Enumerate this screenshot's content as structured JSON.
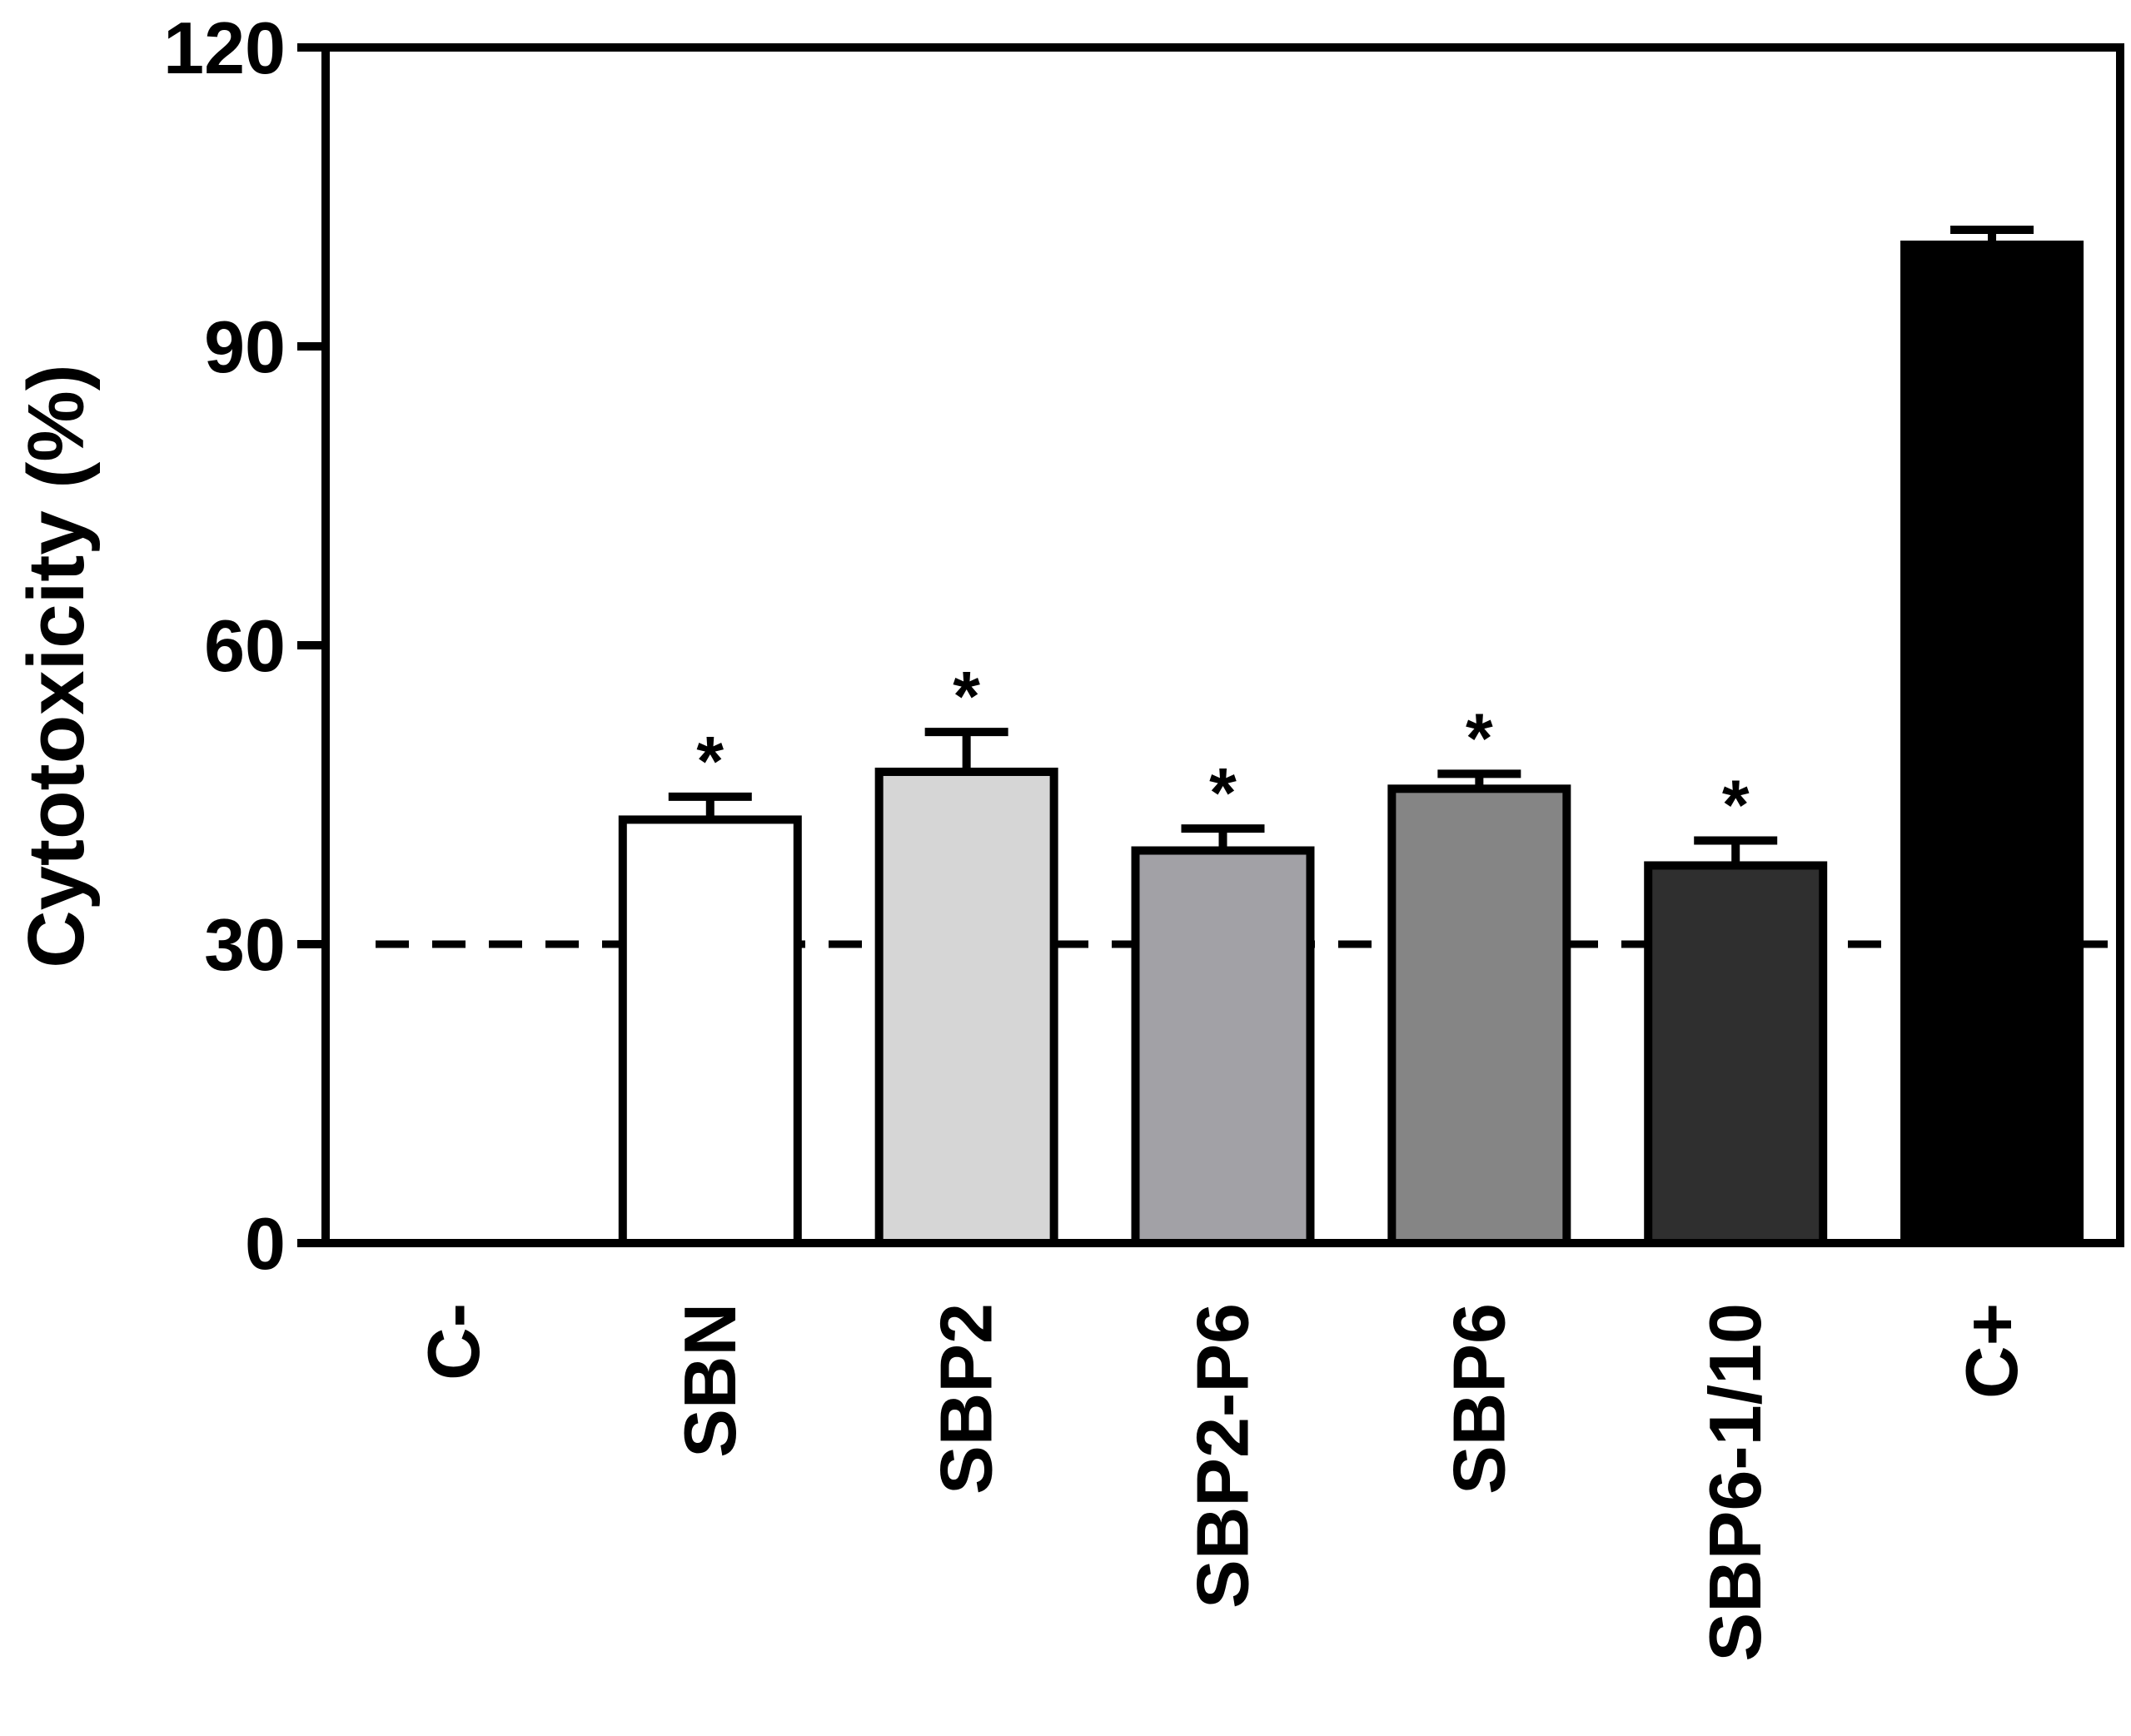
{
  "chart_data": {
    "type": "bar",
    "title": "",
    "xlabel": "",
    "ylabel": "Cytotoxicity (%)",
    "ylim": [
      0,
      120
    ],
    "yticks": [
      "0",
      "30",
      "60",
      "90",
      "120"
    ],
    "grid": false,
    "legend": "none",
    "categories": [
      "C-",
      "SBN",
      "SBP2",
      "SBP2-P6",
      "SBP6",
      "SBP6-1/10",
      "C+"
    ],
    "values": [
      0,
      42.5,
      47.3,
      39.4,
      45.6,
      37.9,
      100.2
    ],
    "errors": [
      0,
      2.3,
      4.0,
      2.2,
      1.5,
      2.5,
      1.5
    ],
    "significance": [
      "",
      "*",
      "*",
      "*",
      "*",
      "*",
      ""
    ],
    "reference_line": {
      "y": 30,
      "style": "dashed"
    },
    "colors": [
      "#ffffff",
      "#ffffff",
      "#d6d6d6",
      "#a2a1a6",
      "#858585",
      "#2f2f2f",
      "#000000"
    ]
  }
}
